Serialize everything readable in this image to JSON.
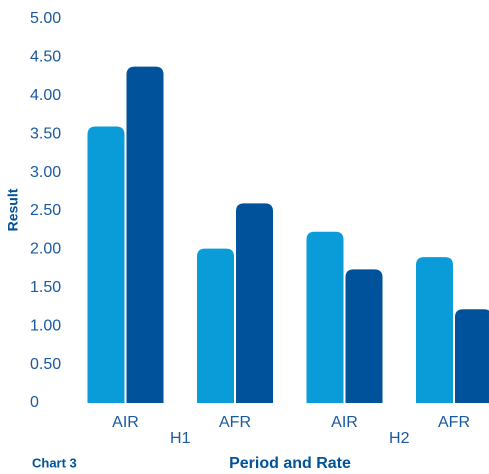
{
  "chart_data": {
    "type": "bar",
    "title": "Chart 3",
    "x_label": "Period and Rate",
    "y_label": "Result",
    "categories": [
      "AIR",
      "AFR",
      "AIR",
      "AFR"
    ],
    "groups": [
      "H1",
      "H2"
    ],
    "series": [
      {
        "color": "#0a9cd8",
        "values": [
          3.6,
          2.01,
          2.23,
          1.9
        ]
      },
      {
        "color": "#00529b",
        "values": [
          4.38,
          2.6,
          1.74,
          1.22
        ]
      }
    ],
    "ylim": [
      0,
      5
    ],
    "yticks": [
      0,
      {
        "value": 0.5,
        "label": "0.50"
      },
      {
        "value": 1,
        "label": "1.00"
      },
      {
        "value": 1.5,
        "label": "1.50"
      },
      {
        "value": 2,
        "label": "2.00"
      },
      {
        "value": 2.5,
        "label": "2.50"
      },
      {
        "value": 3,
        "label": "3.00"
      },
      {
        "value": 3.5,
        "label": "3.50"
      },
      {
        "value": 4,
        "label": "4.00"
      },
      {
        "value": 4.5,
        "label": "4.50"
      },
      {
        "value": 5,
        "label": "5.00"
      }
    ],
    "grid": false
  }
}
